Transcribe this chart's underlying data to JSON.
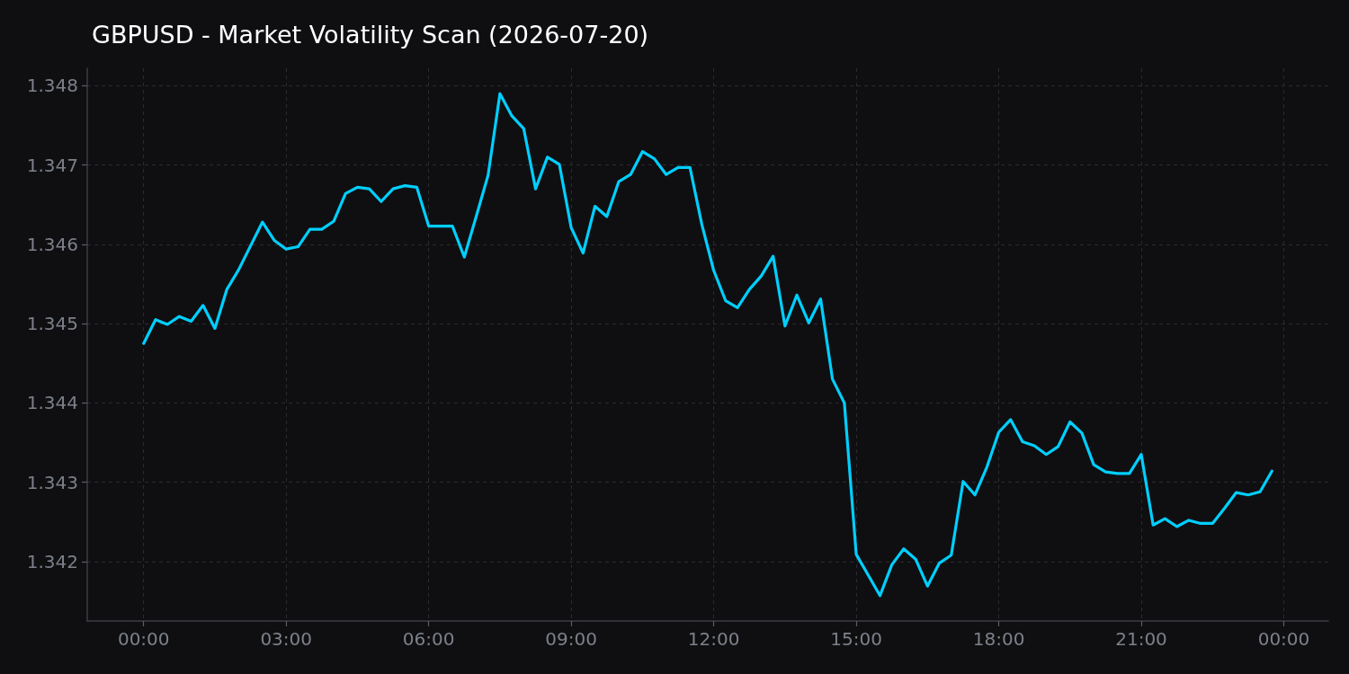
{
  "chart_data": {
    "type": "line",
    "title": "GBPUSD - Market Volatility Scan (2026-07-20)",
    "x": [
      0,
      0.25,
      0.5,
      0.75,
      1,
      1.25,
      1.5,
      1.75,
      2,
      2.25,
      2.5,
      2.75,
      3,
      3.25,
      3.5,
      3.75,
      4,
      4.25,
      4.5,
      4.75,
      5,
      5.25,
      5.5,
      5.75,
      6,
      6.25,
      6.5,
      6.75,
      7,
      7.25,
      7.5,
      7.75,
      8,
      8.25,
      8.5,
      8.75,
      9,
      9.25,
      9.5,
      9.75,
      10,
      10.25,
      10.5,
      10.75,
      11,
      11.25,
      11.5,
      11.75,
      12,
      12.25,
      12.5,
      12.75,
      13,
      13.25,
      13.5,
      13.75,
      14,
      14.25,
      14.5,
      14.75,
      15,
      15.25,
      15.5,
      15.75,
      16,
      16.25,
      16.5,
      16.75,
      17,
      17.25,
      17.5,
      17.75,
      18,
      18.25,
      18.5,
      18.75,
      19,
      19.25,
      19.5,
      19.75,
      20,
      20.25,
      20.5,
      20.75,
      21,
      21.25,
      21.5,
      21.75,
      22,
      22.25,
      22.5,
      22.75,
      23,
      23.25,
      23.5,
      23.75
    ],
    "values": [
      1.34475,
      1.34505,
      1.34499,
      1.34509,
      1.34503,
      1.34523,
      1.34494,
      1.34543,
      1.34568,
      1.34598,
      1.34628,
      1.34605,
      1.34594,
      1.34597,
      1.34619,
      1.34619,
      1.34629,
      1.34664,
      1.34672,
      1.3467,
      1.34654,
      1.3467,
      1.34674,
      1.34672,
      1.34623,
      1.34623,
      1.34623,
      1.34584,
      1.34635,
      1.34687,
      1.3479,
      1.34762,
      1.34746,
      1.3467,
      1.3471,
      1.34701,
      1.34621,
      1.34589,
      1.34648,
      1.34635,
      1.34679,
      1.34688,
      1.34717,
      1.34708,
      1.34688,
      1.34697,
      1.34697,
      1.34625,
      1.34567,
      1.34529,
      1.3452,
      1.34543,
      1.3456,
      1.34585,
      1.34497,
      1.34536,
      1.34501,
      1.34531,
      1.3443,
      1.344,
      1.34209,
      1.34183,
      1.34157,
      1.34196,
      1.34216,
      1.34203,
      1.34169,
      1.34198,
      1.34208,
      1.34301,
      1.34284,
      1.34319,
      1.34363,
      1.34379,
      1.34351,
      1.34346,
      1.34335,
      1.34345,
      1.34376,
      1.34362,
      1.34322,
      1.34313,
      1.34311,
      1.34311,
      1.34335,
      1.34246,
      1.34254,
      1.34244,
      1.34252,
      1.34248,
      1.34248,
      1.34267,
      1.34287,
      1.34284,
      1.34288,
      1.34314
    ],
    "color": "#00cfff",
    "xlim": [
      -1.1875,
      24.9375
    ],
    "xticks": [
      {
        "value": 0,
        "label": "00:00"
      },
      {
        "value": 3,
        "label": "03:00"
      },
      {
        "value": 6,
        "label": "06:00"
      },
      {
        "value": 9,
        "label": "09:00"
      },
      {
        "value": 12,
        "label": "12:00"
      },
      {
        "value": 15,
        "label": "15:00"
      },
      {
        "value": 18,
        "label": "18:00"
      },
      {
        "value": 21,
        "label": "21:00"
      },
      {
        "value": 24,
        "label": "00:00"
      }
    ],
    "ylim": [
      1.34125,
      1.34822
    ],
    "yticks": [
      1.342,
      1.343,
      1.344,
      1.345,
      1.346,
      1.347,
      1.348
    ],
    "grid": true,
    "marker": "none",
    "line_style": "solid"
  }
}
